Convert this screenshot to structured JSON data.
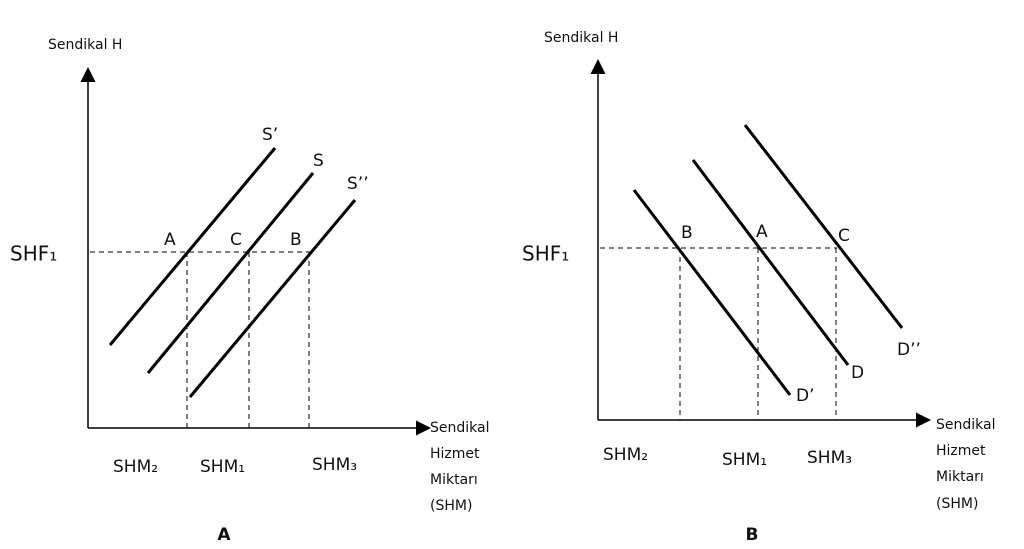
{
  "panels": [
    {
      "caption": "A",
      "y_axis_label": "Sendikal H",
      "x_axis_label": [
        "Sendikal",
        "Hizmet",
        "Miktarı",
        "(SHM)"
      ],
      "price_label": "SHF₁",
      "curves": [
        "S’",
        "S",
        "S’’"
      ],
      "points": [
        "A",
        "C",
        "B"
      ],
      "quantities": [
        "SHM₂",
        "SHM₁",
        "SHM₃"
      ]
    },
    {
      "caption": "B",
      "y_axis_label": "Sendikal H",
      "x_axis_label": [
        "Sendikal",
        "Hizmet",
        "Miktarı",
        "(SHM)"
      ],
      "price_label": "SHF₁",
      "curves": [
        "D’",
        "D",
        "D’’"
      ],
      "points": [
        "B",
        "A",
        "C"
      ],
      "quantities": [
        "SHM₂",
        "SHM₁",
        "SHM₃"
      ]
    }
  ]
}
